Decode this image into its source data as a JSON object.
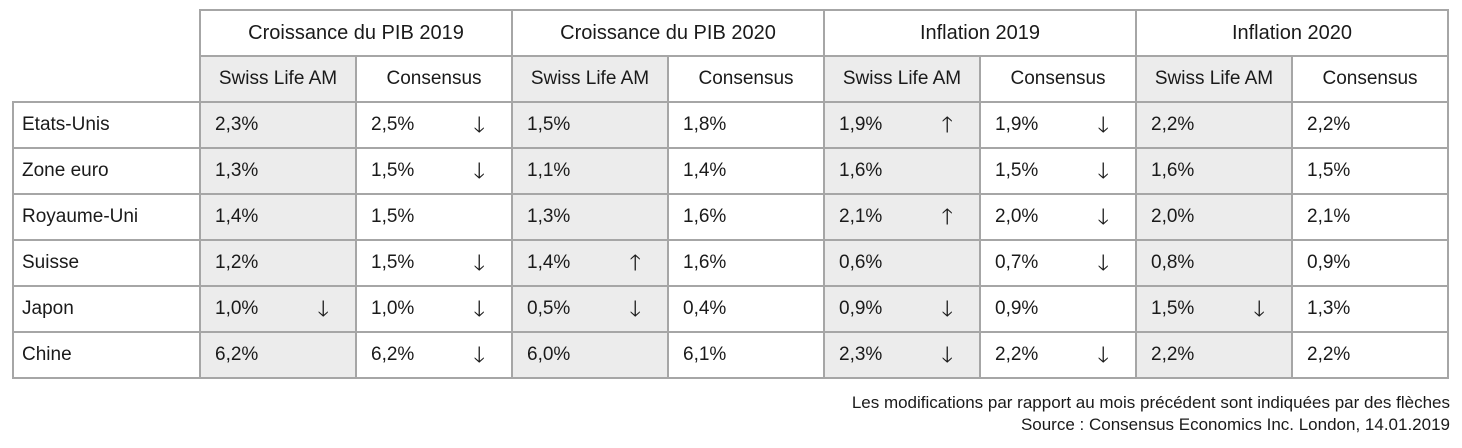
{
  "groups": [
    "Croissance du PIB 2019",
    "Croissance du PIB 2020",
    "Inflation 2019",
    "Inflation 2020"
  ],
  "subheaders": [
    "Swiss Life AM",
    "Consensus"
  ],
  "rows": [
    {
      "country": "Etats-Unis",
      "cells": [
        {
          "v": "2,3%",
          "a": ""
        },
        {
          "v": "2,5%",
          "a": "down"
        },
        {
          "v": "1,5%",
          "a": ""
        },
        {
          "v": "1,8%",
          "a": ""
        },
        {
          "v": "1,9%",
          "a": "up"
        },
        {
          "v": "1,9%",
          "a": "down"
        },
        {
          "v": "2,2%",
          "a": ""
        },
        {
          "v": "2,2%",
          "a": ""
        }
      ]
    },
    {
      "country": "Zone euro",
      "cells": [
        {
          "v": "1,3%",
          "a": ""
        },
        {
          "v": "1,5%",
          "a": "down"
        },
        {
          "v": "1,1%",
          "a": ""
        },
        {
          "v": "1,4%",
          "a": ""
        },
        {
          "v": "1,6%",
          "a": ""
        },
        {
          "v": "1,5%",
          "a": "down"
        },
        {
          "v": "1,6%",
          "a": ""
        },
        {
          "v": "1,5%",
          "a": ""
        }
      ]
    },
    {
      "country": "Royaume-Uni",
      "cells": [
        {
          "v": "1,4%",
          "a": ""
        },
        {
          "v": "1,5%",
          "a": ""
        },
        {
          "v": "1,3%",
          "a": ""
        },
        {
          "v": "1,6%",
          "a": ""
        },
        {
          "v": "2,1%",
          "a": "up"
        },
        {
          "v": "2,0%",
          "a": "down"
        },
        {
          "v": "2,0%",
          "a": ""
        },
        {
          "v": "2,1%",
          "a": ""
        }
      ]
    },
    {
      "country": "Suisse",
      "cells": [
        {
          "v": "1,2%",
          "a": ""
        },
        {
          "v": "1,5%",
          "a": "down"
        },
        {
          "v": "1,4%",
          "a": "up"
        },
        {
          "v": "1,6%",
          "a": ""
        },
        {
          "v": "0,6%",
          "a": ""
        },
        {
          "v": "0,7%",
          "a": "down"
        },
        {
          "v": "0,8%",
          "a": ""
        },
        {
          "v": "0,9%",
          "a": ""
        }
      ]
    },
    {
      "country": "Japon",
      "cells": [
        {
          "v": "1,0%",
          "a": "down"
        },
        {
          "v": "1,0%",
          "a": "down"
        },
        {
          "v": "0,5%",
          "a": "down"
        },
        {
          "v": "0,4%",
          "a": ""
        },
        {
          "v": "0,9%",
          "a": "down"
        },
        {
          "v": "0,9%",
          "a": ""
        },
        {
          "v": "1,5%",
          "a": "down"
        },
        {
          "v": "1,3%",
          "a": ""
        }
      ]
    },
    {
      "country": "Chine",
      "cells": [
        {
          "v": "6,2%",
          "a": ""
        },
        {
          "v": "6,2%",
          "a": "down"
        },
        {
          "v": "6,0%",
          "a": ""
        },
        {
          "v": "6,1%",
          "a": ""
        },
        {
          "v": "2,3%",
          "a": "down"
        },
        {
          "v": "2,2%",
          "a": "down"
        },
        {
          "v": "2,2%",
          "a": ""
        },
        {
          "v": "2,2%",
          "a": ""
        }
      ]
    }
  ],
  "arrow_glyphs": {
    "up": "🡑",
    "down": "🡓"
  },
  "colors": {
    "swiss_life_bg": "#ececec",
    "border": "#a6a6a6"
  },
  "footer": {
    "note": "Les modifications par rapport au mois précédent sont indiquées par des flèches",
    "source": "Source : Consensus Economics Inc. London, 14.01.2019"
  }
}
